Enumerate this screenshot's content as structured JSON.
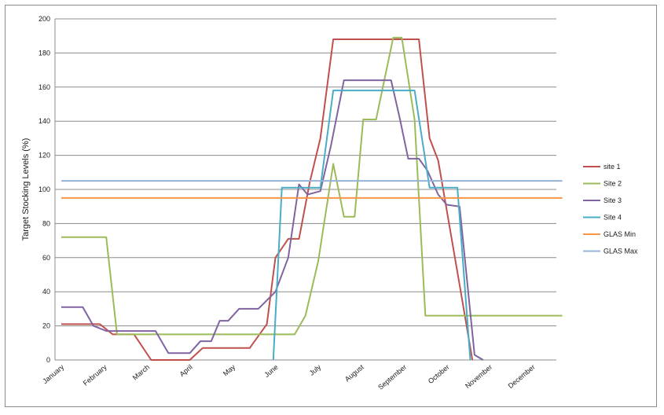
{
  "chart_data": {
    "type": "line",
    "title": "",
    "xlabel": "",
    "ylabel": "Target Stocking Levels (%)",
    "ylim": [
      0,
      200
    ],
    "yticks": [
      0,
      20,
      40,
      60,
      80,
      100,
      120,
      140,
      160,
      180,
      200
    ],
    "xlim": [
      0,
      12
    ],
    "x_ticks": [
      {
        "label": "January",
        "x": 0
      },
      {
        "label": "February",
        "x": 1
      },
      {
        "label": "March",
        "x": 2
      },
      {
        "label": "April",
        "x": 3
      },
      {
        "label": "May",
        "x": 4
      },
      {
        "label": "June",
        "x": 5
      },
      {
        "label": "July",
        "x": 6
      },
      {
        "label": "August",
        "x": 7
      },
      {
        "label": "September",
        "x": 8
      },
      {
        "label": "October",
        "x": 9
      },
      {
        "label": "November",
        "x": 10
      },
      {
        "label": "December",
        "x": 11
      }
    ],
    "grid": "horizontal",
    "legend_position": "right",
    "series": [
      {
        "name": "site 1",
        "color": "#c0504d",
        "points": [
          [
            0,
            21
          ],
          [
            0.9,
            21
          ],
          [
            1.2,
            15
          ],
          [
            1.7,
            15
          ],
          [
            2.1,
            0
          ],
          [
            3.0,
            0
          ],
          [
            3.3,
            7
          ],
          [
            4.4,
            7
          ],
          [
            4.8,
            21
          ],
          [
            5.0,
            60
          ],
          [
            5.3,
            71
          ],
          [
            5.55,
            71
          ],
          [
            5.8,
            104
          ],
          [
            6.05,
            130
          ],
          [
            6.35,
            188
          ],
          [
            8.35,
            188
          ],
          [
            8.6,
            130
          ],
          [
            8.8,
            117
          ],
          [
            9.3,
            44
          ],
          [
            9.6,
            0
          ]
        ]
      },
      {
        "name": "Site 2",
        "color": "#9bbb59",
        "points": [
          [
            0,
            72
          ],
          [
            1.05,
            72
          ],
          [
            1.3,
            15
          ],
          [
            5.45,
            15
          ],
          [
            5.7,
            26
          ],
          [
            6.0,
            58
          ],
          [
            6.35,
            115
          ],
          [
            6.6,
            84
          ],
          [
            6.85,
            84
          ],
          [
            7.05,
            141
          ],
          [
            7.35,
            141
          ],
          [
            7.75,
            189
          ],
          [
            7.95,
            189
          ],
          [
            8.25,
            141
          ],
          [
            8.5,
            26
          ],
          [
            11.7,
            26
          ]
        ]
      },
      {
        "name": "Site 3",
        "color": "#8064a2",
        "points": [
          [
            0,
            31
          ],
          [
            0.5,
            31
          ],
          [
            0.75,
            20
          ],
          [
            1.05,
            17
          ],
          [
            2.2,
            17
          ],
          [
            2.5,
            4
          ],
          [
            3.0,
            4
          ],
          [
            3.25,
            11
          ],
          [
            3.5,
            11
          ],
          [
            3.7,
            23
          ],
          [
            3.9,
            23
          ],
          [
            4.15,
            30
          ],
          [
            4.6,
            30
          ],
          [
            5.0,
            40
          ],
          [
            5.3,
            60
          ],
          [
            5.55,
            103
          ],
          [
            5.75,
            97
          ],
          [
            6.05,
            99
          ],
          [
            6.3,
            126
          ],
          [
            6.6,
            164
          ],
          [
            7.7,
            164
          ],
          [
            7.9,
            142
          ],
          [
            8.1,
            118
          ],
          [
            8.35,
            118
          ],
          [
            8.55,
            111
          ],
          [
            8.8,
            97
          ],
          [
            9.0,
            91
          ],
          [
            9.3,
            90
          ],
          [
            9.65,
            3
          ],
          [
            9.85,
            0
          ]
        ]
      },
      {
        "name": "Site 4",
        "color": "#4bacc6",
        "points": [
          [
            4.95,
            0
          ],
          [
            5.15,
            101
          ],
          [
            6.05,
            101
          ],
          [
            6.35,
            158
          ],
          [
            8.25,
            158
          ],
          [
            8.6,
            101
          ],
          [
            9.25,
            101
          ],
          [
            9.55,
            0
          ]
        ]
      },
      {
        "name": "GLAS Min",
        "color": "#f79646",
        "points": [
          [
            0,
            95
          ],
          [
            11.7,
            95
          ]
        ]
      },
      {
        "name": "GLAS Max",
        "color": "#95b3d7",
        "points": [
          [
            0,
            105
          ],
          [
            11.7,
            105
          ]
        ]
      }
    ]
  }
}
